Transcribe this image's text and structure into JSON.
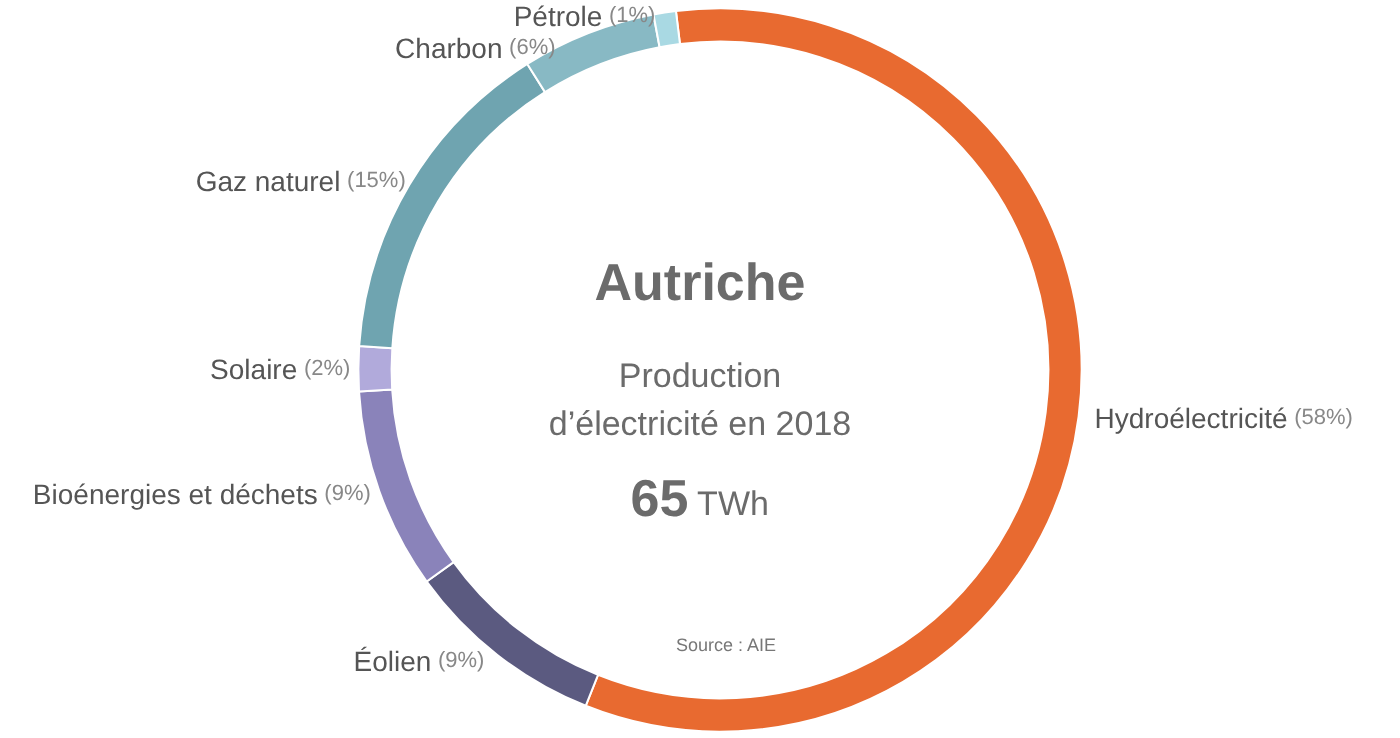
{
  "chart_data": {
    "type": "donut",
    "title": "Autriche",
    "subtitle": "Production d’électricité en 2018",
    "categories": [
      "Hydroélectricité",
      "Éolien",
      "Bioénergies et déchets",
      "Solaire",
      "Gaz naturel",
      "Charbon",
      "Pétrole"
    ],
    "values": [
      58,
      9,
      9,
      2,
      15,
      6,
      1
    ],
    "colors": [
      "#e86a30",
      "#5b5a80",
      "#8a83ba",
      "#b1aadb",
      "#6fa4b0",
      "#88b9c4",
      "#a9d9e3"
    ],
    "value_labels": [
      "(58%)",
      "(9%)",
      "(9%)",
      "(2%)",
      "(15%)",
      "(6%)",
      "(1%)"
    ],
    "legend": false,
    "annotations": [
      "65 TWh",
      "Source : AIE"
    ]
  }
}
